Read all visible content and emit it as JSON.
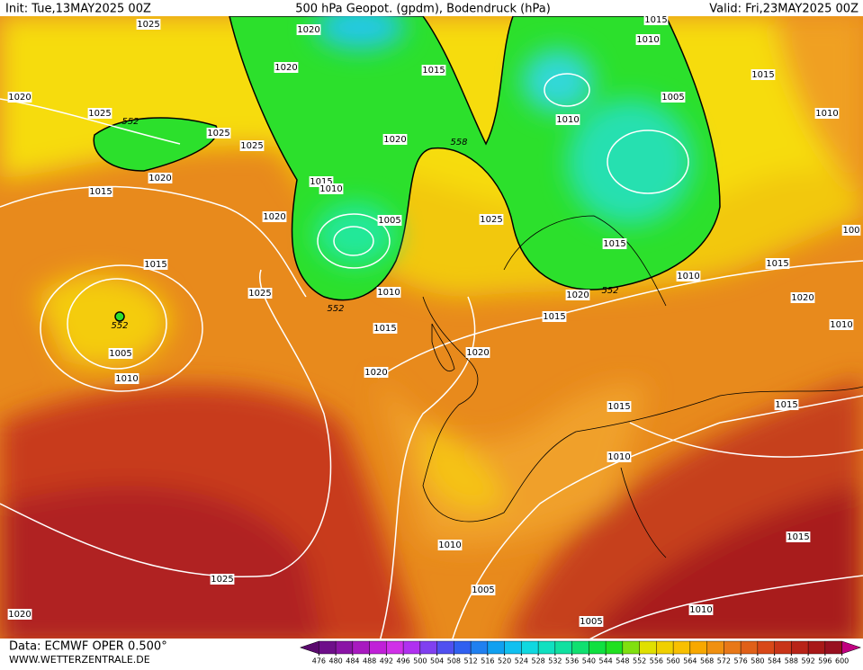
{
  "header": {
    "init": "Init: Tue,13MAY2025 00Z",
    "title": "500 hPa Geopot. (gpdm), Bodendruck (hPa)",
    "valid": "Valid: Fri,23MAY2025 00Z"
  },
  "footer": {
    "source": "Data: ECMWF OPER 0.500°",
    "website": "WWW.WETTERZENTRALE.DE"
  },
  "colorbar": {
    "ticks": [
      476,
      480,
      484,
      488,
      492,
      496,
      500,
      504,
      508,
      512,
      516,
      520,
      524,
      528,
      532,
      536,
      540,
      544,
      548,
      552,
      556,
      560,
      564,
      568,
      572,
      576,
      580,
      584,
      588,
      592,
      596,
      600
    ]
  },
  "contour_labels": {
    "geopotential": [
      "552",
      "558",
      "552",
      "552",
      "552"
    ],
    "pressure": [
      "1025",
      "1020",
      "1015",
      "1010",
      "1020",
      "1025",
      "1020",
      "1015",
      "1015",
      "1005",
      "1010",
      "1010",
      "1025",
      "1025",
      "1020",
      "1020",
      "1015",
      "1010",
      "1015",
      "1020",
      "1005",
      "1025",
      "1015",
      "1015",
      "1025",
      "1010",
      "1010",
      "1015",
      "1020",
      "1020",
      "1015",
      "1015",
      "1010",
      "1005",
      "1010",
      "1020",
      "1020",
      "1015",
      "1015",
      "1010",
      "1010",
      "1025",
      "1015",
      "1005",
      "1010",
      "1005",
      "1020",
      "100"
    ]
  }
}
